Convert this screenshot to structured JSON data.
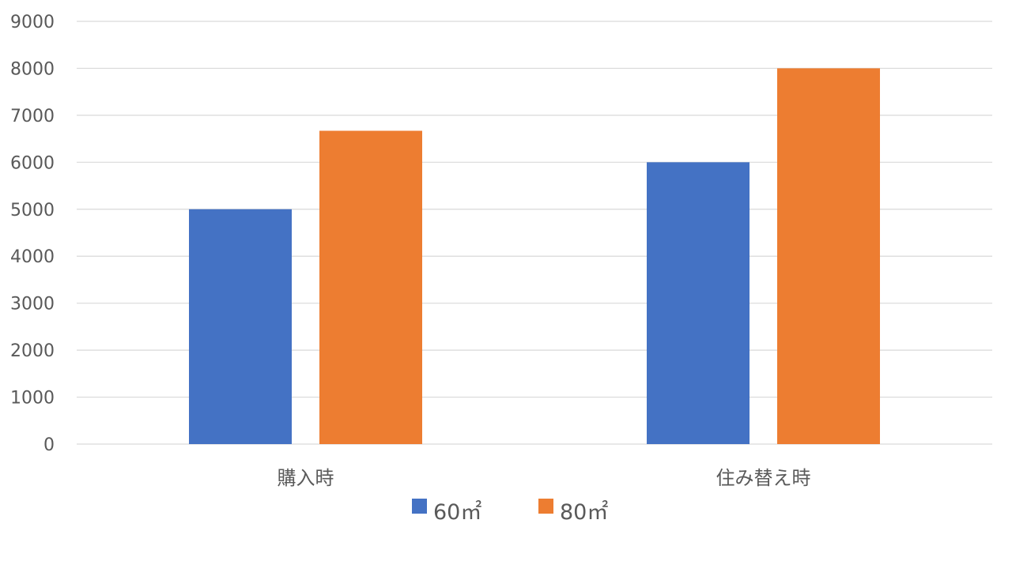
{
  "chart_data": {
    "type": "bar",
    "categories": [
      "購入時",
      "住み替え時"
    ],
    "series": [
      {
        "name": "60㎡",
        "values": [
          5000,
          6000
        ],
        "color": "#4472C4"
      },
      {
        "name": "80㎡",
        "values": [
          6670,
          8000
        ],
        "color": "#ED7D31"
      }
    ],
    "ylim": [
      0,
      9000
    ],
    "yticks": [
      "0",
      "1000",
      "2000",
      "3000",
      "4000",
      "5000",
      "6000",
      "7000",
      "8000",
      "9000"
    ],
    "grid": true,
    "legend": "bottom",
    "gridline_color": "#D9D9D9",
    "title": "",
    "xlabel": "",
    "ylabel": ""
  }
}
